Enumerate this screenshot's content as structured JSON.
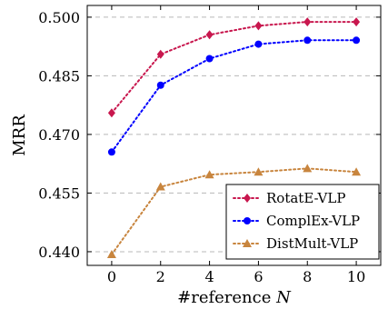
{
  "chart_data": {
    "type": "line",
    "x": [
      0,
      2,
      4,
      6,
      8,
      10
    ],
    "xticks": [
      "0",
      "2",
      "4",
      "6",
      "8",
      "10"
    ],
    "yticks": [
      "0.440",
      "0.455",
      "0.470",
      "0.485",
      "0.500"
    ],
    "xlabel": "#reference ",
    "xlabel_var": "N",
    "ylabel": "MRR",
    "xlim": [
      -1,
      11
    ],
    "ylim": [
      0.4365,
      0.503
    ],
    "grid": "horizontal dashed",
    "legend_position": "bottom-right",
    "series": [
      {
        "name": "RotatE-VLP",
        "color": "#c8174e",
        "marker": "diamond",
        "values": [
          0.4755,
          0.4905,
          0.4955,
          0.4978,
          0.4988,
          0.4988
        ]
      },
      {
        "name": "ComplEx-VLP",
        "color": "#0000ff",
        "marker": "circle",
        "values": [
          0.4655,
          0.4826,
          0.4894,
          0.4931,
          0.4941,
          0.4941
        ]
      },
      {
        "name": "DistMult-VLP",
        "color": "#c8853e",
        "marker": "triangle",
        "values": [
          0.4393,
          0.4566,
          0.4597,
          0.4604,
          0.4613,
          0.4604
        ]
      }
    ]
  }
}
